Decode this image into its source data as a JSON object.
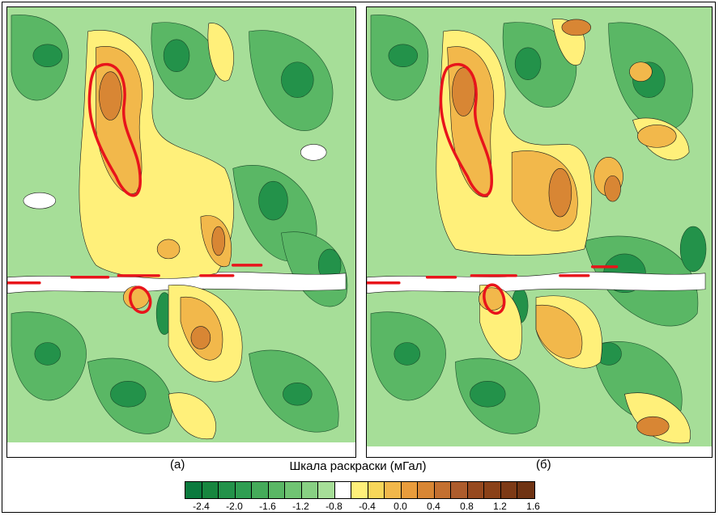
{
  "panels": [
    {
      "id": "a",
      "label": "(а)"
    },
    {
      "id": "b",
      "label": "(б)"
    }
  ],
  "legend": {
    "title": "Шкала раскраски (мГал)",
    "colors": [
      "#0b7a3e",
      "#17863f",
      "#23924a",
      "#2f9e52",
      "#45ab5a",
      "#5ab765",
      "#70c473",
      "#88d083",
      "#a6de98",
      "#ffffff",
      "#fff07a",
      "#f7d65a",
      "#f2b84b",
      "#e99c3c",
      "#d88634",
      "#c47030",
      "#ad5c2c",
      "#96491f",
      "#8a4118",
      "#7d3a16",
      "#6f3313"
    ],
    "ticks": [
      "-2.4",
      "-2.0",
      "-1.6",
      "-1.2",
      "-0.8",
      "-0.4",
      "0.0",
      "0.4",
      "0.8",
      "1.2",
      "1.6"
    ]
  },
  "map_colors": {
    "background": "#a6de98",
    "green_mid": "#5ab765",
    "green_dark": "#23924a",
    "white": "#ffffff",
    "yellow": "#fff07a",
    "orange": "#f2b84b",
    "brown": "#d88634",
    "highlight": "#e8141b"
  }
}
